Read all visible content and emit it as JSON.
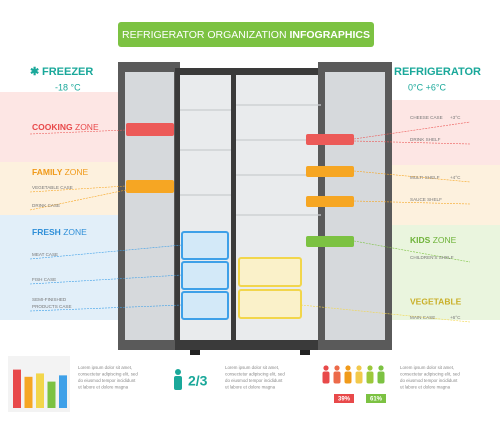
{
  "title": {
    "main": "REFRIGERATOR ORGANIZATION",
    "bold": "INFOGRAPHICS"
  },
  "freezer": {
    "label": "FREEZER",
    "temp": "-18 °C"
  },
  "refrigerator": {
    "label": "REFRIGERATOR",
    "temp": "0°C  +6°C"
  },
  "left_zones": [
    {
      "name": "COOKING",
      "suffix": "ZONE",
      "items": []
    },
    {
      "name": "FAMILY",
      "suffix": "ZONE",
      "items": [
        "VEGETABLE CASE",
        "DRINK CASE"
      ]
    },
    {
      "name": "FRESH",
      "suffix": "ZONE",
      "items": [
        "MEAT CASE",
        "FISH CASE"
      ],
      "multiline": [
        "SEMI-FINISHED",
        "PRODUCTS CASE"
      ]
    }
  ],
  "right_items": [
    {
      "label": "CHEESE CASE",
      "temp": "+3°C"
    },
    {
      "label": "DRINK SHELF"
    },
    {
      "label": "MULTI SHELF",
      "temp": "+4°C"
    },
    {
      "label": "SAUCE SHELF"
    }
  ],
  "kids_zone": {
    "name": "KIDS",
    "suffix": "ZONE",
    "item": "CHILDREN'S SHELF"
  },
  "vegetable": {
    "name": "VEGETABLE",
    "item": "MAIN CASE",
    "temp": "+6°C"
  },
  "footer": {
    "mini_chart": {
      "values": [
        80,
        65,
        72,
        55,
        68
      ],
      "colors": [
        "#e8494a",
        "#f6a623",
        "#f2d64b",
        "#7cc242",
        "#3ea0e8"
      ],
      "ylim": [
        0,
        100
      ]
    },
    "texts": [
      [
        "Lorem ipsum dolor sit amet,",
        "consectetur adipiscing elit, sed",
        "do eiusmod tempor incididunt",
        "ut labore et dolore magna"
      ],
      [
        "Lorem ipsum dolor sit amet,",
        "consectetur adipiscing elit, sed",
        "do eiusmod tempor incididunt",
        "ut labore et dolore magna"
      ],
      [
        "Lorem ipsum dolor sit amet,",
        "consectetur adipiscing elit, sed",
        "do eiusmod tempor incididunt",
        "ut labore et dolore magna"
      ]
    ],
    "fraction": "2/3",
    "percents": [
      "39%",
      "61%"
    ]
  }
}
